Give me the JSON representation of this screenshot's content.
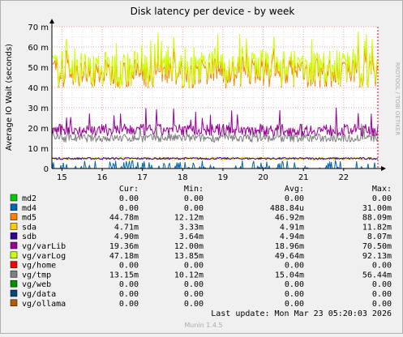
{
  "chart_data": {
    "type": "line",
    "title": "Disk latency per device - by week",
    "ylabel": "Average IO Wait (seconds)",
    "side_label": "RRDTOOL / TOBI OETIKER",
    "ylim": [
      0,
      70
    ],
    "yticks": [
      {
        "value": 0,
        "label": "0"
      },
      {
        "value": 10,
        "label": "10 m"
      },
      {
        "value": 20,
        "label": "20 m"
      },
      {
        "value": 30,
        "label": "30 m"
      },
      {
        "value": 40,
        "label": "40 m"
      },
      {
        "value": 50,
        "label": "50 m"
      },
      {
        "value": 60,
        "label": "60 m"
      },
      {
        "value": 70,
        "label": "70 m"
      }
    ],
    "xlim": [
      14.75,
      22.85
    ],
    "xticks": [
      {
        "value": 15,
        "label": "15"
      },
      {
        "value": 16,
        "label": "16"
      },
      {
        "value": 17,
        "label": "17"
      },
      {
        "value": 18,
        "label": "18"
      },
      {
        "value": 19,
        "label": "19"
      },
      {
        "value": 20,
        "label": "20"
      },
      {
        "value": 21,
        "label": "21"
      },
      {
        "value": 22,
        "label": "22"
      }
    ],
    "grid": true,
    "legend_headers": [
      "Cur:",
      "Min:",
      "Avg:",
      "Max:"
    ],
    "series": [
      {
        "name": "md2",
        "color": "#00cc00",
        "cur": "0.00",
        "min": "0.00",
        "avg": "0.00",
        "max": "0.00"
      },
      {
        "name": "md4",
        "color": "#0066b3",
        "cur": "0.00",
        "min": "0.00",
        "avg": "488.84u",
        "max": "31.00m"
      },
      {
        "name": "md5",
        "color": "#ff8000",
        "cur": "44.78m",
        "min": "12.12m",
        "avg": "46.92m",
        "max": "88.09m"
      },
      {
        "name": "sda",
        "color": "#ffcc00",
        "cur": "4.71m",
        "min": "3.33m",
        "avg": "4.91m",
        "max": "11.82m"
      },
      {
        "name": "sdb",
        "color": "#330099",
        "cur": "4.90m",
        "min": "3.64m",
        "avg": "4.94m",
        "max": "8.07m"
      },
      {
        "name": "vg/varLib",
        "color": "#990099",
        "cur": "19.36m",
        "min": "12.00m",
        "avg": "18.96m",
        "max": "70.50m"
      },
      {
        "name": "vg/varLog",
        "color": "#ccff00",
        "cur": "47.18m",
        "min": "13.85m",
        "avg": "49.64m",
        "max": "92.13m"
      },
      {
        "name": "vg/home",
        "color": "#ff0000",
        "cur": "0.00",
        "min": "0.00",
        "avg": "0.00",
        "max": "0.00"
      },
      {
        "name": "vg/tmp",
        "color": "#808080",
        "cur": "13.15m",
        "min": "10.12m",
        "avg": "15.04m",
        "max": "56.44m"
      },
      {
        "name": "vg/web",
        "color": "#008f00",
        "cur": "0.00",
        "min": "0.00",
        "avg": "0.00",
        "max": "0.00"
      },
      {
        "name": "vg/data",
        "color": "#00487d",
        "cur": "0.00",
        "min": "0.00",
        "avg": "0.00",
        "max": "0.00"
      },
      {
        "name": "vg/ollama",
        "color": "#b35a00",
        "cur": "0.00",
        "min": "0.00",
        "avg": "0.00",
        "max": "0.00"
      }
    ],
    "last_update": "Last update:  Mon Mar 23 05:20:03 2026",
    "footer": "Munin 1.4.5"
  }
}
